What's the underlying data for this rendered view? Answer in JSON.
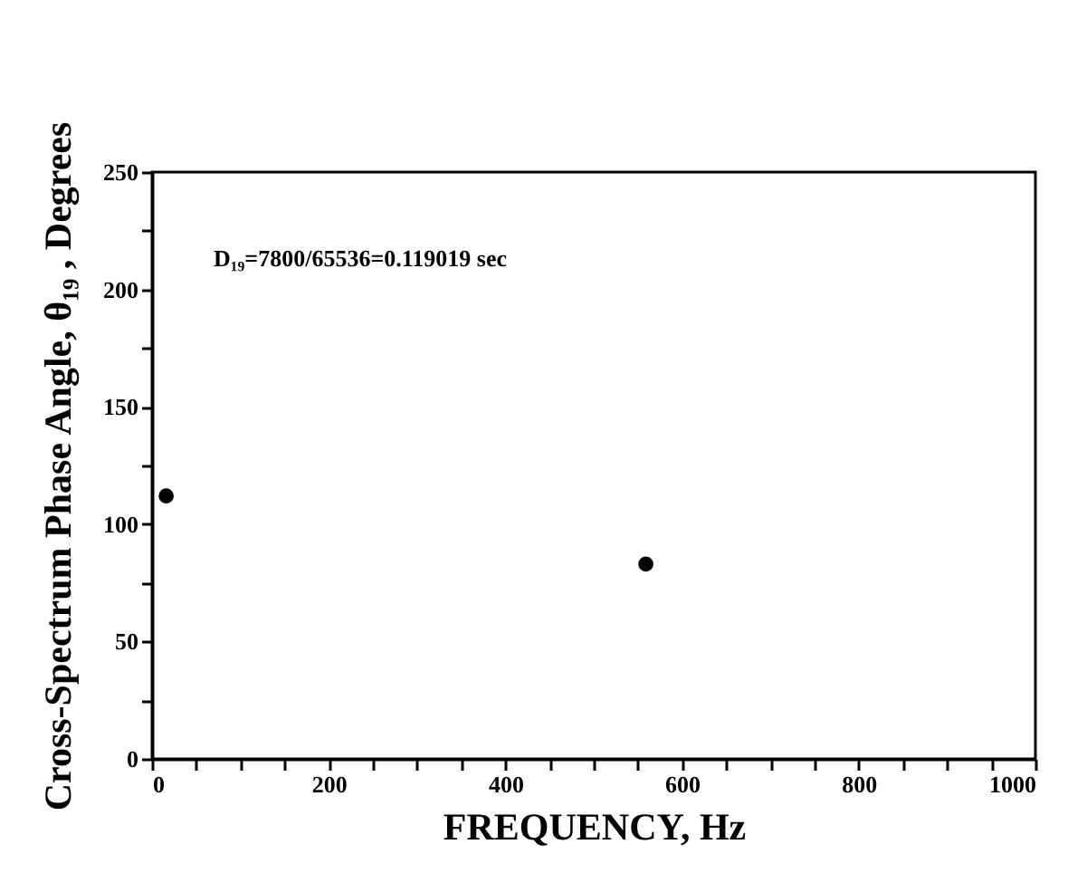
{
  "chart_data": {
    "type": "scatter",
    "xlabel": "FREQUENCY, Hz",
    "ylabel": "Cross-Spectrum Phase Angle, θ₁₉ , Degrees",
    "x": [
      16,
      559
    ],
    "series": [
      {
        "color": "#000000",
        "values": [
          112,
          83
        ]
      }
    ],
    "xlim": [
      0,
      1000
    ],
    "ylim": [
      0,
      250
    ],
    "xticks": [
      0,
      {
        "value": 50,
        "label": null
      },
      {
        "value": 100,
        "label": null
      },
      {
        "value": 150,
        "label": null
      },
      200,
      {
        "value": 250,
        "label": null
      },
      {
        "value": 300,
        "label": null
      },
      {
        "value": 350,
        "label": null
      },
      400,
      {
        "value": 450,
        "label": null
      },
      {
        "value": 500,
        "label": null
      },
      {
        "value": 550,
        "label": null
      },
      600,
      {
        "value": 650,
        "label": null
      },
      {
        "value": 700,
        "label": null
      },
      {
        "value": 750,
        "label": null
      },
      800,
      {
        "value": 850,
        "label": null
      },
      {
        "value": 900,
        "label": null
      },
      {
        "value": 950,
        "label": null
      },
      1000
    ],
    "yticks": [
      0,
      {
        "value": 25,
        "label": null
      },
      50,
      {
        "value": 75,
        "label": null
      },
      100,
      {
        "value": 125,
        "label": null
      },
      150,
      {
        "value": 175,
        "label": null
      },
      200,
      {
        "value": 225,
        "label": null
      },
      250
    ],
    "annotations": [
      "D₁₉=7800/65536=0.119019 sec"
    ],
    "marker": "circle",
    "grid": false,
    "legend": false
  }
}
